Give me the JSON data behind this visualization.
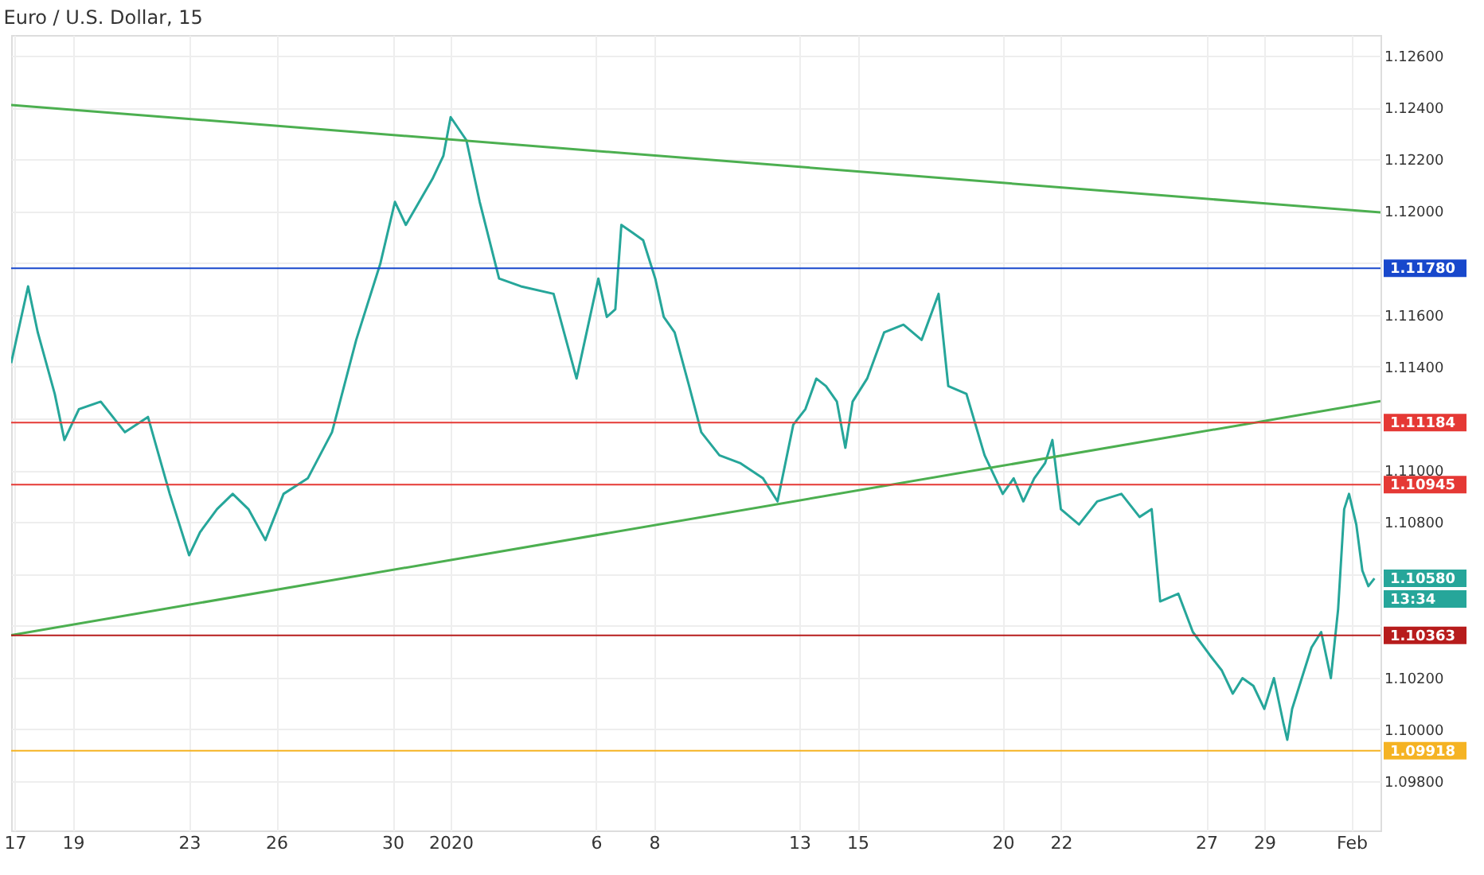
{
  "chart_data": {
    "type": "line",
    "title": "Euro / U.S. Dollar, 15",
    "xlim": [
      "2019-12-16T21:00",
      "2020-02-02T00:00"
    ],
    "ylim": [
      1.0961,
      1.1268
    ],
    "xticks": [
      {
        "value": "2019-12-17",
        "label": "17"
      },
      {
        "value": "2019-12-19",
        "label": "19"
      },
      {
        "value": "2019-12-23",
        "label": "23"
      },
      {
        "value": "2019-12-26",
        "label": "26"
      },
      {
        "value": "2019-12-30",
        "label": "30"
      },
      {
        "value": "2020-01-01",
        "label": "2020"
      },
      {
        "value": "2020-01-06",
        "label": "6"
      },
      {
        "value": "2020-01-08",
        "label": "8"
      },
      {
        "value": "2020-01-13",
        "label": "13"
      },
      {
        "value": "2020-01-15",
        "label": "15"
      },
      {
        "value": "2020-01-20",
        "label": "20"
      },
      {
        "value": "2020-01-22",
        "label": "22"
      },
      {
        "value": "2020-01-27",
        "label": "27"
      },
      {
        "value": "2020-01-29",
        "label": "29"
      },
      {
        "value": "2020-02-01",
        "label": "Feb"
      }
    ],
    "yticks": [
      {
        "value": 1.098,
        "label": "1.09800"
      },
      {
        "value": 1.1,
        "label": "1.10000"
      },
      {
        "value": 1.102,
        "label": "1.10200"
      },
      {
        "value": 1.104,
        "label": null
      },
      {
        "value": 1.106,
        "label": null
      },
      {
        "value": 1.108,
        "label": "1.10800"
      },
      {
        "value": 1.11,
        "label": "1.11000"
      },
      {
        "value": 1.112,
        "label": null
      },
      {
        "value": 1.114,
        "label": "1.11400"
      },
      {
        "value": 1.116,
        "label": "1.11600"
      },
      {
        "value": 1.118,
        "label": null
      },
      {
        "value": 1.12,
        "label": "1.12000"
      },
      {
        "value": 1.122,
        "label": "1.12200"
      },
      {
        "value": 1.124,
        "label": "1.12400"
      },
      {
        "value": 1.126,
        "label": "1.12600"
      }
    ],
    "grid": true,
    "marker": "none",
    "line_style": "solid",
    "series": [
      {
        "color": "#26a69a",
        "x": [
          "2019-12-16T21:00",
          "2019-12-17T11:00",
          "2019-12-17T19:00",
          "2019-12-18T09:00",
          "2019-12-18T17:00",
          "2019-12-19T05:00",
          "2019-12-19T23:00",
          "2019-12-20T19:00",
          "2019-12-21T14:00",
          "2019-12-22T08:00",
          "2019-12-23T00:00",
          "2019-12-23T09:00",
          "2019-12-23T23:00",
          "2019-12-24T12:00",
          "2019-12-25T01:00",
          "2019-12-25T15:00",
          "2019-12-26T06:00",
          "2019-12-27T02:00",
          "2019-12-27T22:00",
          "2019-12-28T18:00",
          "2019-12-29T14:00",
          "2019-12-30T02:00",
          "2019-12-30T11:00",
          "2019-12-30T22:00",
          "2019-12-31T09:00",
          "2019-12-31T18:00",
          "2020-01-01T00:00",
          "2020-01-01T13:00",
          "2020-01-02T00:00",
          "2020-01-02T16:00",
          "2020-01-03T10:00",
          "2020-01-04T13:00",
          "2020-01-05T08:00",
          "2020-01-06T02:00",
          "2020-01-06T09:00",
          "2020-01-06T16:00",
          "2020-01-06T21:00",
          "2020-01-07T06:00",
          "2020-01-07T15:00",
          "2020-01-08T01:00",
          "2020-01-08T08:00",
          "2020-01-08T17:00",
          "2020-01-09T05:00",
          "2020-01-09T15:00",
          "2020-01-10T06:00",
          "2020-01-10T23:00",
          "2020-01-11T18:00",
          "2020-01-12T06:00",
          "2020-01-12T19:00",
          "2020-01-13T05:00",
          "2020-01-13T14:00",
          "2020-01-13T22:00",
          "2020-01-14T07:00",
          "2020-01-14T14:00",
          "2020-01-14T20:00",
          "2020-01-15T08:00",
          "2020-01-15T22:00",
          "2020-01-16T14:00",
          "2020-01-17T05:00",
          "2020-01-17T19:00",
          "2020-01-18T03:00",
          "2020-01-18T18:00",
          "2020-01-19T09:00",
          "2020-01-20T00:00",
          "2020-01-20T09:00",
          "2020-01-20T17:00",
          "2020-01-21T02:00",
          "2020-01-21T11:00",
          "2020-01-21T17:00",
          "2020-01-22T00:00",
          "2020-01-22T15:00",
          "2020-01-23T06:00",
          "2020-01-24T02:00",
          "2020-01-24T17:00",
          "2020-01-25T03:00",
          "2020-01-25T10:00",
          "2020-01-26T01:00",
          "2020-01-26T13:00",
          "2020-01-27T03:00",
          "2020-01-27T13:00",
          "2020-01-27T22:00",
          "2020-01-28T06:00",
          "2020-01-28T15:00",
          "2020-01-29T00:00",
          "2020-01-29T08:00",
          "2020-01-29T16:00",
          "2020-01-29T19:00",
          "2020-01-29T23:00",
          "2020-01-30T07:00",
          "2020-01-30T15:00",
          "2020-01-30T23:00",
          "2020-01-31T07:00",
          "2020-01-31T13:00",
          "2020-01-31T18:00",
          "2020-01-31T22:00",
          "2020-02-01T04:00",
          "2020-02-01T09:00",
          "2020-02-01T14:00",
          "2020-02-01T19:00"
        ],
        "values": [
          1.11414,
          1.1171,
          1.11532,
          1.11295,
          1.11117,
          1.11236,
          1.11265,
          1.11147,
          1.11206,
          1.10909,
          1.10672,
          1.10761,
          1.1085,
          1.10909,
          1.1085,
          1.10731,
          1.10909,
          1.10969,
          1.11147,
          1.11503,
          1.11799,
          1.12036,
          1.11947,
          1.12036,
          1.12125,
          1.12214,
          1.12363,
          1.12274,
          1.12036,
          1.1174,
          1.1171,
          1.11681,
          1.11354,
          1.1174,
          1.11592,
          1.11621,
          1.11947,
          1.11918,
          1.11888,
          1.1174,
          1.11592,
          1.11532,
          1.11325,
          1.11147,
          1.11058,
          1.11028,
          1.10969,
          1.1088,
          1.11176,
          1.11236,
          1.11354,
          1.11325,
          1.11265,
          1.11087,
          1.11265,
          1.11354,
          1.11532,
          1.11562,
          1.11503,
          1.11681,
          1.11325,
          1.11295,
          1.11058,
          1.10909,
          1.10969,
          1.1088,
          1.10969,
          1.11028,
          1.11117,
          1.1085,
          1.10791,
          1.1088,
          1.10909,
          1.1082,
          1.1085,
          1.10494,
          1.10524,
          1.10376,
          1.10287,
          1.10227,
          1.10138,
          1.10198,
          1.10168,
          1.10079,
          1.10198,
          1.1002,
          1.0996,
          1.10079,
          1.10198,
          1.10316,
          1.10376,
          1.10198,
          1.10464,
          1.1085,
          1.10909,
          1.10791,
          1.10613,
          1.10553,
          1.10583
        ]
      },
      {
        "type": "line",
        "color": "#4caf50",
        "x": [
          "2019-12-16T21:00",
          "2020-02-02T00:00"
        ],
        "values": [
          1.1241,
          1.11995
        ]
      },
      {
        "type": "line",
        "color": "#4caf50",
        "x": [
          "2019-12-16T21:00",
          "2020-02-02T00:00"
        ],
        "values": [
          1.10364,
          1.11267
        ]
      }
    ],
    "ref_lines": [
      {
        "axis": "y",
        "value": 1.1178,
        "label": "1.11780",
        "color": "#1848cc"
      },
      {
        "axis": "y",
        "value": 1.11184,
        "label": "1.11184",
        "color": "#e53935"
      },
      {
        "axis": "y",
        "value": 1.10945,
        "label": "1.10945",
        "color": "#e53935"
      },
      {
        "axis": "y",
        "value": 1.10363,
        "label": "1.10363",
        "color": "#b71c1c"
      },
      {
        "axis": "y",
        "value": 1.09918,
        "label": "1.09918",
        "color": "#f5b323"
      }
    ],
    "annotations": [
      "1.10580",
      "13:34"
    ]
  }
}
